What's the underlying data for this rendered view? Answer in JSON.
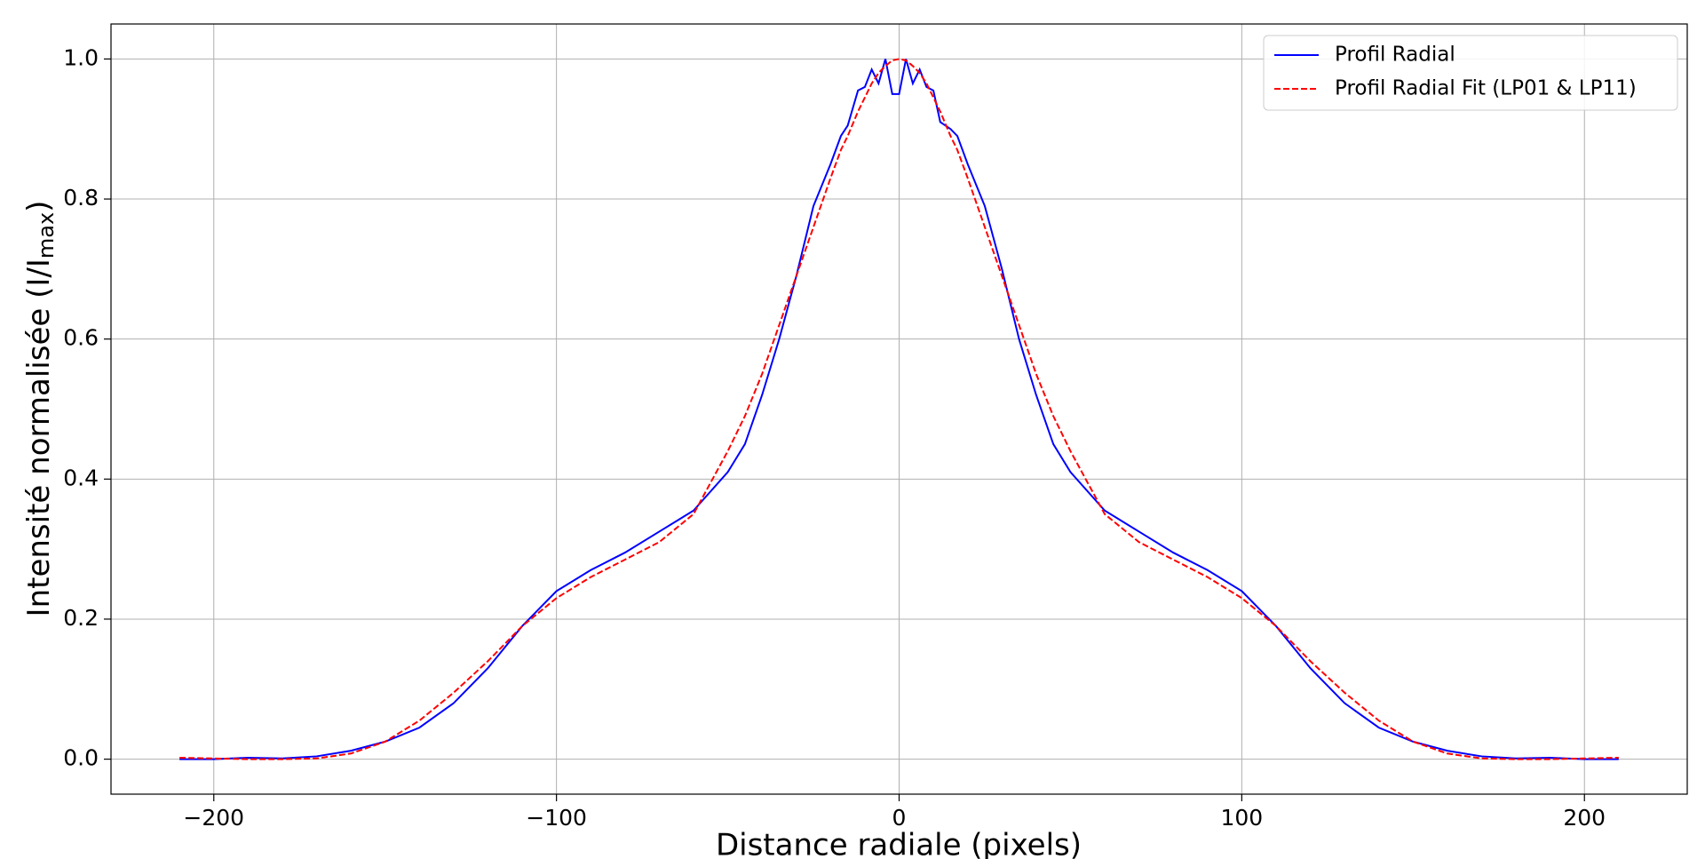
{
  "chart_data": {
    "type": "line",
    "xlabel": "Distance radiale (pixels)",
    "ylabel": {
      "text": "Intensité normalisée (I/I",
      "subscript": "max",
      "suffix": ")"
    },
    "x": [
      -210,
      -200,
      -190,
      -180,
      -170,
      -160,
      -150,
      -140,
      -130,
      -120,
      -110,
      -100,
      -90,
      -80,
      -70,
      -60,
      -50,
      -45,
      -40,
      -35,
      -30,
      -25,
      -20,
      -17,
      -15,
      -12,
      -10,
      -8,
      -6,
      -4,
      -2,
      0,
      2,
      4,
      6,
      8,
      10,
      12,
      15,
      17,
      20,
      25,
      30,
      35,
      40,
      45,
      50,
      60,
      70,
      80,
      90,
      100,
      110,
      120,
      130,
      140,
      150,
      160,
      170,
      180,
      190,
      200,
      210
    ],
    "series": [
      {
        "name": "Profil Radial",
        "color": "#0000ff",
        "dash": false,
        "values": [
          0.0,
          0.0,
          0.002,
          0.001,
          0.004,
          0.012,
          0.025,
          0.045,
          0.08,
          0.13,
          0.19,
          0.24,
          0.27,
          0.295,
          0.325,
          0.355,
          0.41,
          0.45,
          0.52,
          0.6,
          0.69,
          0.79,
          0.85,
          0.89,
          0.905,
          0.955,
          0.96,
          0.985,
          0.965,
          1.0,
          0.95,
          0.95,
          1.0,
          0.965,
          0.985,
          0.96,
          0.955,
          0.91,
          0.9,
          0.89,
          0.85,
          0.79,
          0.7,
          0.6,
          0.52,
          0.45,
          0.41,
          0.355,
          0.325,
          0.295,
          0.27,
          0.24,
          0.19,
          0.13,
          0.08,
          0.045,
          0.025,
          0.012,
          0.004,
          0.001,
          0.002,
          0.0,
          0.0
        ]
      },
      {
        "name": "Profil Radial Fit (LP01 & LP11)",
        "color": "#ff0000",
        "dash": true,
        "values": [
          0.002,
          0.001,
          0.0,
          0.0,
          0.001,
          0.008,
          0.025,
          0.055,
          0.095,
          0.14,
          0.19,
          0.23,
          0.26,
          0.285,
          0.31,
          0.35,
          0.44,
          0.49,
          0.55,
          0.62,
          0.69,
          0.76,
          0.83,
          0.87,
          0.89,
          0.925,
          0.945,
          0.965,
          0.98,
          0.99,
          0.998,
          1.0,
          0.998,
          0.99,
          0.98,
          0.965,
          0.945,
          0.925,
          0.89,
          0.87,
          0.83,
          0.76,
          0.69,
          0.62,
          0.55,
          0.49,
          0.44,
          0.35,
          0.31,
          0.285,
          0.26,
          0.23,
          0.19,
          0.14,
          0.095,
          0.055,
          0.025,
          0.008,
          0.001,
          0.0,
          0.0,
          0.001,
          0.002
        ]
      }
    ],
    "xlim": [
      -230,
      230
    ],
    "ylim": [
      -0.05,
      1.05
    ],
    "xticks": [
      {
        "value": -200,
        "label": "−200"
      },
      {
        "value": -100,
        "label": "−100"
      },
      0,
      100,
      200
    ],
    "yticks": [
      {
        "value": 0,
        "label": "0.0"
      },
      0.2,
      0.4,
      0.6,
      0.8,
      {
        "value": 1,
        "label": "1.0"
      }
    ],
    "grid": true,
    "legend": "upper-right"
  }
}
